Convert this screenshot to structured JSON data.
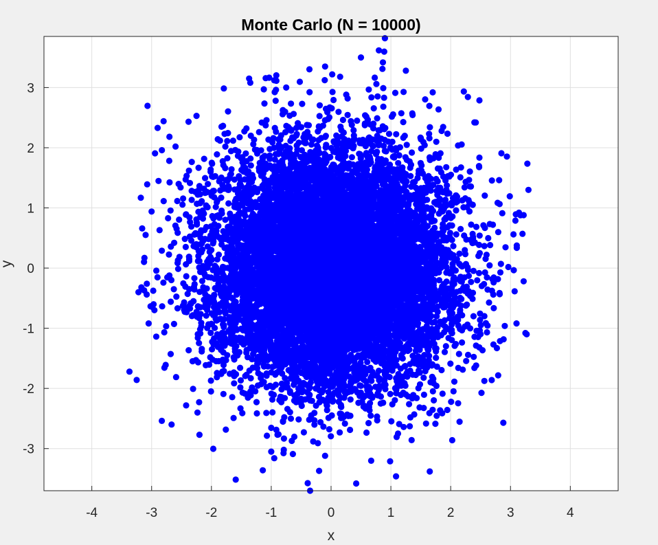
{
  "chart_data": {
    "type": "scatter",
    "title": "Monte Carlo (N = 10000)",
    "xlabel": "x",
    "ylabel": "y",
    "xlim": [
      -4.8,
      4.8
    ],
    "ylim": [
      -3.7,
      3.85
    ],
    "xticks": [
      -4,
      -3,
      -2,
      -1,
      0,
      1,
      2,
      3,
      4
    ],
    "yticks": [
      -3,
      -2,
      -1,
      0,
      1,
      2,
      3
    ],
    "grid": true,
    "marker_color": "#0000ff",
    "series": [
      {
        "n": 10000,
        "distribution": "standard normal",
        "mean": [
          0,
          0
        ],
        "std": [
          1,
          1
        ],
        "notable_points": [
          [
            0.9,
            3.82
          ],
          [
            0.5,
            3.5
          ],
          [
            -0.1,
            3.35
          ],
          [
            0.02,
            3.22
          ],
          [
            1.25,
            3.28
          ],
          [
            -1.37,
            3.15
          ],
          [
            -1.35,
            3.08
          ],
          [
            -0.95,
            3.12
          ],
          [
            -0.75,
            3.0
          ],
          [
            1.7,
            2.92
          ],
          [
            -2.8,
            2.44
          ],
          [
            -2.9,
            2.33
          ],
          [
            -2.6,
            2.02
          ],
          [
            -2.25,
            2.53
          ],
          [
            2.42,
            2.42
          ],
          [
            3.3,
            1.3
          ],
          [
            3.22,
            0.88
          ],
          [
            3.2,
            0.57
          ],
          [
            3.05,
            0.56
          ],
          [
            -3.1,
            0.55
          ],
          [
            -3.12,
            0.17
          ],
          [
            -3.22,
            -0.4
          ],
          [
            -3.17,
            -0.32
          ],
          [
            -3.05,
            -0.92
          ],
          [
            -3.37,
            -1.72
          ],
          [
            -3.25,
            -1.86
          ],
          [
            3.25,
            -1.08
          ],
          [
            3.27,
            -1.1
          ],
          [
            3.1,
            -0.92
          ],
          [
            3.22,
            -0.22
          ],
          [
            2.88,
            -2.57
          ],
          [
            -2.2,
            -2.77
          ],
          [
            1.65,
            -3.38
          ],
          [
            0.42,
            -3.58
          ],
          [
            -0.35,
            -3.7
          ],
          [
            -0.2,
            -3.37
          ],
          [
            -0.1,
            -3.12
          ],
          [
            -1.0,
            -3.05
          ],
          [
            -0.95,
            -3.16
          ]
        ]
      }
    ]
  }
}
